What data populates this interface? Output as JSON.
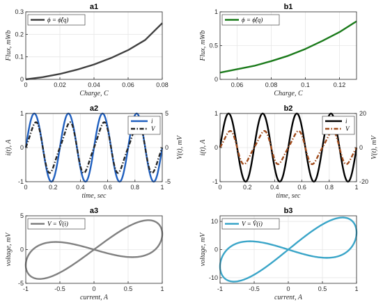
{
  "chart_data": [
    {
      "id": "a1",
      "type": "line",
      "title": "a1",
      "xlabel": "Charge, C",
      "ylabel": "Flux, mWb",
      "xlim": [
        0,
        0.08
      ],
      "ylim": [
        0,
        0.3
      ],
      "xticks": [
        0,
        0.02,
        0.04,
        0.06,
        0.08
      ],
      "xtick_labels": [
        "0",
        "0.02",
        "0.04",
        "0.06",
        "0.08"
      ],
      "yticks": [
        0,
        0.1,
        0.2,
        0.3
      ],
      "ytick_labels": [
        "0",
        "0.1",
        "0.2",
        "0.3"
      ],
      "grid": true,
      "legend": "top-left",
      "series": [
        {
          "name": "ϕ = ϕ̂(q)",
          "color": "#404040",
          "x": [
            0,
            0.01,
            0.02,
            0.03,
            0.04,
            0.05,
            0.06,
            0.07,
            0.08
          ],
          "y": [
            0,
            0.01,
            0.024,
            0.043,
            0.066,
            0.095,
            0.13,
            0.175,
            0.25
          ]
        }
      ]
    },
    {
      "id": "b1",
      "type": "line",
      "title": "b1",
      "xlabel": "Charge, C",
      "ylabel": "Flux, mWb",
      "xlim": [
        0.05,
        0.13
      ],
      "ylim": [
        0,
        1
      ],
      "xticks": [
        0.06,
        0.08,
        0.1,
        0.12
      ],
      "xtick_labels": [
        "0.06",
        "0.08",
        "0.1",
        "0.12"
      ],
      "yticks": [
        0,
        0.5,
        1
      ],
      "ytick_labels": [
        "0",
        "0.5",
        "1"
      ],
      "grid": true,
      "legend": "top-left",
      "series": [
        {
          "name": "ϕ = ϕ̂(q)",
          "color": "#1a7a1a",
          "x": [
            0.05,
            0.06,
            0.07,
            0.08,
            0.09,
            0.1,
            0.11,
            0.12,
            0.13
          ],
          "y": [
            0.1,
            0.15,
            0.2,
            0.27,
            0.35,
            0.45,
            0.57,
            0.7,
            0.86
          ]
        }
      ]
    },
    {
      "id": "a2",
      "type": "line",
      "title": "a2",
      "xlabel": "time, sec",
      "ylabel": "i(t), A",
      "ylabel_right": "V(t), mV",
      "xlim": [
        0,
        1
      ],
      "ylim": [
        -1,
        1
      ],
      "ylim_right": [
        -5,
        5
      ],
      "xticks": [
        0,
        0.2,
        0.4,
        0.6,
        0.8,
        1
      ],
      "xtick_labels": [
        "0",
        "0.2",
        "0.4",
        "0.6",
        "0.8",
        "1"
      ],
      "yticks": [
        -1,
        0,
        1
      ],
      "ytick_labels": [
        "-1",
        "0",
        "1"
      ],
      "yticks_right": [
        -5,
        0,
        5
      ],
      "ytick_labels_right": [
        "-5",
        "0",
        "5"
      ],
      "grid": true,
      "legend": "top-right",
      "series": [
        {
          "name": "i",
          "color": "#1f5fbf",
          "axis": "left",
          "style": "solid",
          "waveform": "sin",
          "amplitude": 1,
          "frequency_hz": 4
        },
        {
          "name": "V",
          "color": "#262626",
          "axis": "right",
          "style": "dashdot",
          "waveform": "flux-controlled",
          "amplitude": 4.2,
          "frequency_hz": 4
        }
      ]
    },
    {
      "id": "b2",
      "type": "line",
      "title": "b2",
      "xlabel": "time, sec",
      "ylabel": "i(t), A",
      "ylabel_right": "V(t), mV",
      "xlim": [
        0,
        1
      ],
      "ylim": [
        -1,
        1
      ],
      "ylim_right": [
        -20,
        20
      ],
      "xticks": [
        0,
        0.2,
        0.4,
        0.6,
        0.8,
        1
      ],
      "xtick_labels": [
        "0",
        "0.2",
        "0.4",
        "0.6",
        "0.8",
        "1"
      ],
      "yticks": [
        -1,
        0,
        1
      ],
      "ytick_labels": [
        "-1",
        "0",
        "1"
      ],
      "yticks_right": [
        -20,
        0,
        20
      ],
      "ytick_labels_right": [
        "-20",
        "0",
        "20"
      ],
      "grid": true,
      "legend": "top-right",
      "series": [
        {
          "name": "i",
          "color": "#000000",
          "axis": "left",
          "style": "solid",
          "waveform": "sin",
          "amplitude": 1,
          "frequency_hz": 4
        },
        {
          "name": "V",
          "color": "#a04a1a",
          "axis": "right",
          "style": "dashdot",
          "waveform": "flux-controlled",
          "amplitude": 11,
          "frequency_hz": 4
        }
      ]
    },
    {
      "id": "a3",
      "type": "line",
      "title": "a3",
      "xlabel": "current, A",
      "ylabel": "voltage, mV",
      "xlim": [
        -1,
        1
      ],
      "ylim": [
        -5,
        5
      ],
      "xticks": [
        -1,
        -0.5,
        0,
        0.5,
        1
      ],
      "xtick_labels": [
        "-1",
        "-0.5",
        "0",
        "0.5",
        "1"
      ],
      "yticks": [
        -5,
        0,
        5
      ],
      "ytick_labels": [
        "-5",
        "0",
        "5"
      ],
      "grid": true,
      "legend": "top-left",
      "series": [
        {
          "name": "V = V̂(i)",
          "color": "#808080",
          "waveform": "pinched-loop",
          "amplitude": 4.2
        }
      ]
    },
    {
      "id": "b3",
      "type": "line",
      "title": "b3",
      "xlabel": "current, A",
      "ylabel": "voltage, mV",
      "xlim": [
        -1,
        1
      ],
      "ylim": [
        -12,
        12
      ],
      "xticks": [
        -1,
        -0.5,
        0,
        0.5,
        1
      ],
      "xtick_labels": [
        "-1",
        "-0.5",
        "0",
        "0.5",
        "1"
      ],
      "yticks": [
        -10,
        0,
        10
      ],
      "ytick_labels": [
        "-10",
        "0",
        "10"
      ],
      "grid": true,
      "legend": "top-left",
      "series": [
        {
          "name": "V = V̂(i)",
          "color": "#3aa5c8",
          "waveform": "pinched-loop",
          "amplitude": 11
        }
      ]
    }
  ]
}
